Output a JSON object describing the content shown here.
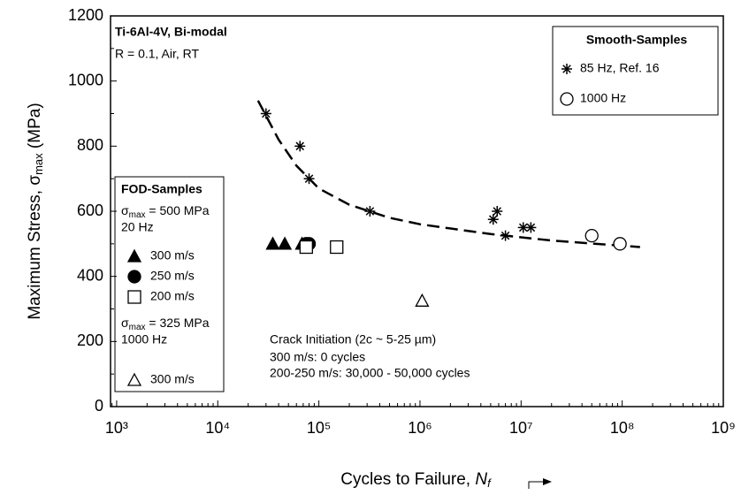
{
  "chart_data": {
    "type": "scatter",
    "title": "Ti-6Al-4V, Bi-modal",
    "subtitle": "R = 0.1, Air, RT",
    "xlabel": {
      "text": "Cycles to Failure, ",
      "italic": "N",
      "sub": "f"
    },
    "ylabel": {
      "text": "Maximum Stress, σ",
      "sub": "max",
      "after": " (MPa)"
    },
    "xscale": "log",
    "xlim": [
      870,
      1000000000
    ],
    "xticks": [
      {
        "value": 1000,
        "label": "10³"
      },
      {
        "value": 10000,
        "label": "10⁴"
      },
      {
        "value": 100000,
        "label": "10⁵"
      },
      {
        "value": 1000000,
        "label": "10⁶"
      },
      {
        "value": 10000000,
        "label": "10⁷"
      },
      {
        "value": 100000000,
        "label": "10⁸"
      },
      {
        "value": 1000000000,
        "label": "10⁹"
      }
    ],
    "ylim": [
      0,
      1200
    ],
    "yticks": [
      0,
      200,
      400,
      600,
      800,
      1000,
      1200
    ],
    "legend_smooth": {
      "title": "Smooth-Samples"
    },
    "legend_fod": {
      "title": "FOD-Samples",
      "group1": {
        "text": "σ",
        "sub": "max",
        "after": " = 500 MPa",
        "freq": "20 Hz"
      },
      "group2": {
        "text": "σ",
        "sub": "max",
        "after": " = 325 MPa",
        "freq": "1000 Hz"
      }
    },
    "annotation": [
      "Crack Initiation (2c ~ 5-25 µm)",
      "300 m/s:  0 cycles",
      "200-250 m/s:  30,000 - 50,000 cycles"
    ],
    "series": [
      {
        "name": "85 Hz, Ref. 16",
        "marker": "asterisk",
        "color": "#000000",
        "x": [
          30000,
          65000,
          80000,
          320000,
          5300000,
          5800000,
          7000000,
          10500000,
          12500000
        ],
        "values": [
          900,
          800,
          700,
          600,
          575,
          600,
          525,
          550,
          550
        ]
      },
      {
        "name": "1000 Hz",
        "marker": "circle-open",
        "color": "#000000",
        "x": [
          50000000,
          95000000
        ],
        "values": [
          525,
          500
        ]
      },
      {
        "name": "300 m/s",
        "marker": "triangle-filled",
        "color": "#000000",
        "x": [
          35000,
          46000,
          68000
        ],
        "values": [
          500,
          500,
          500
        ]
      },
      {
        "name": "250 m/s",
        "marker": "circle-filled",
        "color": "#000000",
        "x": [
          75000,
          80000
        ],
        "values": [
          500,
          500
        ]
      },
      {
        "name": "200 m/s",
        "marker": "square-open",
        "color": "#000000",
        "x": [
          75000,
          150000
        ],
        "values": [
          490,
          490
        ]
      },
      {
        "name": "300 m/s",
        "marker": "triangle-open",
        "color": "#000000",
        "x": [
          1050000
        ],
        "values": [
          325
        ]
      }
    ],
    "curve": {
      "x": [
        25000,
        40000,
        60000,
        100000,
        200000,
        500000,
        1000000,
        5000000,
        20000000,
        150000000
      ],
      "values": [
        940,
        820,
        740,
        670,
        620,
        580,
        560,
        530,
        510,
        490
      ]
    }
  }
}
